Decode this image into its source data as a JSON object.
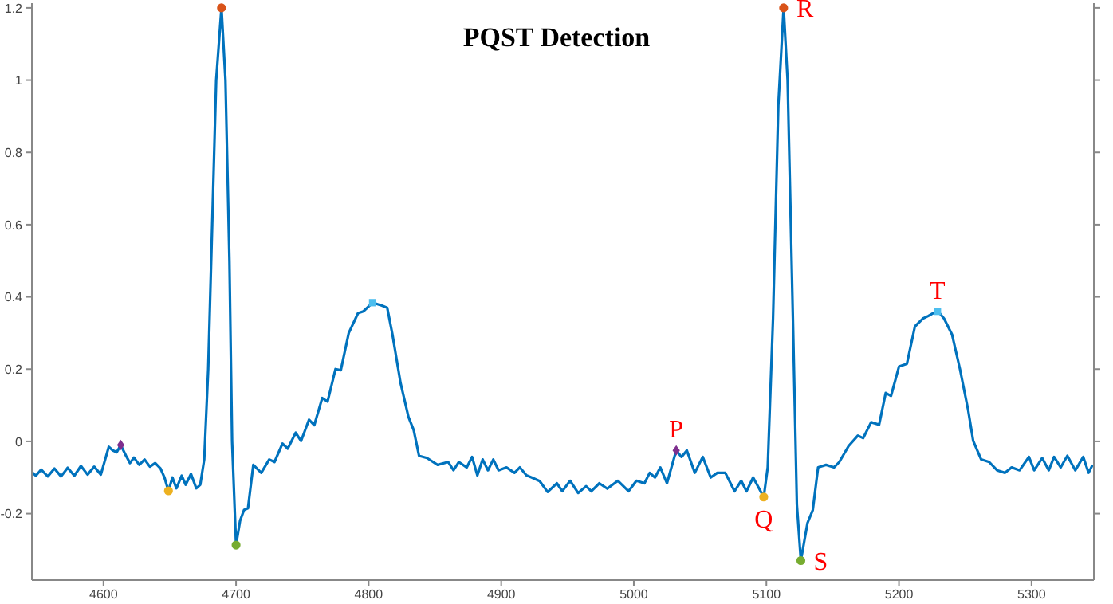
{
  "chart_data": {
    "type": "line",
    "title": "PQST Detection",
    "xlim": [
      4546,
      5347
    ],
    "xticks": [
      4600,
      4700,
      4800,
      4900,
      5000,
      5100,
      5200,
      5300
    ],
    "ylim": [
      -0.384,
      1.213
    ],
    "yticks": [
      -0.2,
      0,
      0.2,
      0.4,
      0.6,
      0.8,
      1,
      1.2
    ],
    "grid": false,
    "legend": false,
    "marker": "none",
    "line_style": "solid",
    "series": [
      {
        "color": "#0072bd",
        "x": [
          4546,
          4549,
          4553,
          4558,
          4563,
          4568,
          4573,
          4578,
          4583,
          4588,
          4593,
          4598,
          4604,
          4607,
          4610,
          4613,
          4617,
          4620,
          4623,
          4627,
          4631,
          4635,
          4639,
          4643,
          4646,
          4649,
          4652,
          4655,
          4659,
          4662,
          4666,
          4670,
          4673,
          4676,
          4679,
          4682,
          4685,
          4689,
          4692,
          4695,
          4697,
          4700,
          4703,
          4706,
          4709,
          4713,
          4719,
          4725,
          4729,
          4735,
          4739,
          4745,
          4749,
          4755,
          4759,
          4765,
          4769,
          4775,
          4779,
          4785,
          4792,
          4796,
          4803,
          4810,
          4814,
          4818,
          4824,
          4830,
          4834,
          4838,
          4844,
          4852,
          4860,
          4864,
          4868,
          4874,
          4878,
          4882,
          4886,
          4890,
          4894,
          4898,
          4904,
          4910,
          4914,
          4919,
          4923,
          4929,
          4935,
          4942,
          4946,
          4952,
          4958,
          4964,
          4968,
          4974,
          4980,
          4988,
          4996,
          5002,
          5008,
          5012,
          5016,
          5020,
          5025,
          5032,
          5036,
          5040,
          5046,
          5052,
          5058,
          5063,
          5069,
          5076,
          5081,
          5085,
          5090,
          5098,
          5101,
          5105,
          5109,
          5113,
          5116,
          5120,
          5123,
          5126,
          5131,
          5135,
          5139,
          5145,
          5151,
          5155,
          5162,
          5169,
          5173,
          5179,
          5185,
          5190,
          5194,
          5200,
          5206,
          5212,
          5218,
          5222,
          5229,
          5234,
          5240,
          5246,
          5252,
          5256,
          5262,
          5268,
          5274,
          5280,
          5285,
          5291,
          5298,
          5302,
          5308,
          5313,
          5317,
          5322,
          5327,
          5333,
          5339,
          5343,
          5346
        ],
        "values": [
          -0.085,
          -0.095,
          -0.078,
          -0.097,
          -0.075,
          -0.097,
          -0.073,
          -0.095,
          -0.068,
          -0.092,
          -0.07,
          -0.092,
          -0.015,
          -0.025,
          -0.03,
          -0.01,
          -0.04,
          -0.06,
          -0.045,
          -0.065,
          -0.05,
          -0.07,
          -0.06,
          -0.075,
          -0.1,
          -0.137,
          -0.1,
          -0.13,
          -0.095,
          -0.12,
          -0.09,
          -0.13,
          -0.12,
          -0.05,
          0.2,
          0.6,
          1.0,
          1.2,
          1.0,
          0.5,
          0.0,
          -0.287,
          -0.22,
          -0.19,
          -0.185,
          -0.065,
          -0.087,
          -0.05,
          -0.057,
          -0.006,
          -0.02,
          0.024,
          0.001,
          0.06,
          0.045,
          0.12,
          0.11,
          0.2,
          0.197,
          0.3,
          0.355,
          0.36,
          0.384,
          0.376,
          0.37,
          0.295,
          0.163,
          0.068,
          0.031,
          -0.04,
          -0.046,
          -0.065,
          -0.057,
          -0.08,
          -0.057,
          -0.072,
          -0.043,
          -0.094,
          -0.05,
          -0.08,
          -0.05,
          -0.08,
          -0.072,
          -0.087,
          -0.072,
          -0.094,
          -0.1,
          -0.11,
          -0.14,
          -0.116,
          -0.138,
          -0.109,
          -0.143,
          -0.124,
          -0.138,
          -0.116,
          -0.131,
          -0.109,
          -0.138,
          -0.109,
          -0.116,
          -0.087,
          -0.1,
          -0.072,
          -0.116,
          -0.025,
          -0.043,
          -0.025,
          -0.087,
          -0.043,
          -0.1,
          -0.087,
          -0.087,
          -0.138,
          -0.109,
          -0.138,
          -0.1,
          -0.154,
          -0.072,
          0.34,
          0.93,
          1.2,
          1.0,
          0.34,
          -0.175,
          -0.33,
          -0.226,
          -0.19,
          -0.072,
          -0.065,
          -0.072,
          -0.057,
          -0.013,
          0.016,
          0.009,
          0.053,
          0.046,
          0.134,
          0.126,
          0.207,
          0.215,
          0.318,
          0.34,
          0.347,
          0.362,
          0.34,
          0.296,
          0.2,
          0.09,
          0.001,
          -0.05,
          -0.057,
          -0.08,
          -0.087,
          -0.072,
          -0.08,
          -0.043,
          -0.08,
          -0.046,
          -0.08,
          -0.043,
          -0.072,
          -0.04,
          -0.08,
          -0.043,
          -0.087,
          -0.065
        ]
      },
      {
        "type": "scatter",
        "color": "#7e2f8e",
        "marker": "diamond",
        "x": [
          4613,
          5032
        ],
        "values": [
          -0.01,
          -0.025
        ]
      },
      {
        "type": "scatter",
        "color": "#edb120",
        "marker": "circle",
        "x": [
          4649,
          5098
        ],
        "values": [
          -0.137,
          -0.154
        ]
      },
      {
        "type": "scatter",
        "color": "#d95319",
        "marker": "circle",
        "x": [
          4689,
          5113
        ],
        "values": [
          1.2,
          1.2
        ]
      },
      {
        "type": "scatter",
        "color": "#77ac30",
        "marker": "circle",
        "x": [
          4700,
          5126
        ],
        "values": [
          -0.287,
          -0.33
        ]
      },
      {
        "type": "scatter",
        "color": "#4dbeee",
        "marker": "square",
        "x": [
          4803,
          5229
        ],
        "values": [
          0.384,
          0.36
        ]
      }
    ],
    "annotations": [
      {
        "text": "P",
        "x": 5032,
        "y": -0.025
      },
      {
        "text": "Q",
        "x": 5098,
        "y": -0.154
      },
      {
        "text": "R",
        "x": 5113,
        "y": 1.2
      },
      {
        "text": "S",
        "x": 5126,
        "y": -0.33
      },
      {
        "text": "T",
        "x": 5229,
        "y": 0.36
      }
    ]
  }
}
